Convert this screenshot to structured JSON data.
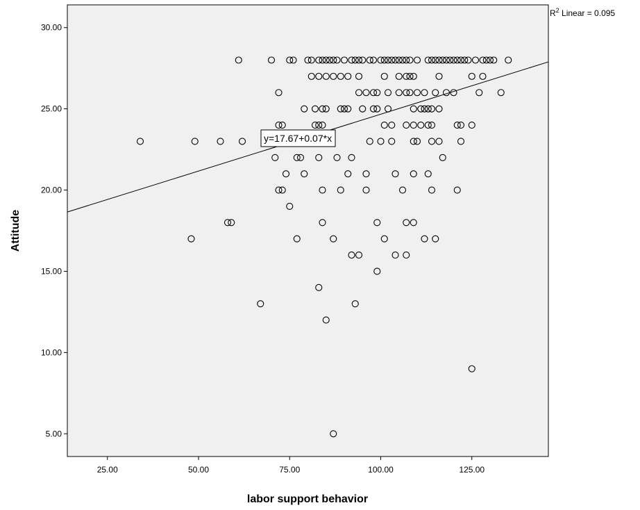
{
  "chart_data": {
    "type": "scatter",
    "title": "",
    "xlabel": "labor support behavior",
    "ylabel": "Attitude",
    "xlim": [
      14,
      146
    ],
    "ylim": [
      3.6,
      31.4
    ],
    "xticks": [
      25,
      50,
      75,
      100,
      125
    ],
    "xtick_labels": [
      "25.00",
      "50.00",
      "75.00",
      "100.00",
      "125.00"
    ],
    "yticks": [
      5,
      10,
      15,
      20,
      25,
      30
    ],
    "ytick_labels": [
      "5.00",
      "10.00",
      "15.00",
      "20.00",
      "25.00",
      "30.00"
    ],
    "grid": false,
    "fit_line": {
      "intercept": 17.67,
      "slope": 0.07,
      "equation_label": "y=17.67+0.07*x",
      "r2_prefix": "R",
      "r2_sup": "2",
      "r2_suffix": " Linear = 0.095"
    },
    "points": [
      [
        34,
        23
      ],
      [
        48,
        17
      ],
      [
        49,
        23
      ],
      [
        56,
        23
      ],
      [
        58,
        18
      ],
      [
        59,
        18
      ],
      [
        61,
        28
      ],
      [
        62,
        23
      ],
      [
        67,
        13
      ],
      [
        70,
        28
      ],
      [
        71,
        22
      ],
      [
        72,
        26
      ],
      [
        72,
        24
      ],
      [
        72,
        20
      ],
      [
        73,
        24
      ],
      [
        73,
        20
      ],
      [
        74,
        21
      ],
      [
        75,
        28
      ],
      [
        75,
        19
      ],
      [
        76,
        28
      ],
      [
        77,
        22
      ],
      [
        77,
        17
      ],
      [
        78,
        22
      ],
      [
        79,
        21
      ],
      [
        79,
        25
      ],
      [
        80,
        28
      ],
      [
        81,
        28
      ],
      [
        81,
        27
      ],
      [
        82,
        25
      ],
      [
        82,
        24
      ],
      [
        83,
        28
      ],
      [
        83,
        27
      ],
      [
        83,
        24
      ],
      [
        83,
        22
      ],
      [
        83,
        14
      ],
      [
        84,
        28
      ],
      [
        84,
        25
      ],
      [
        84,
        24
      ],
      [
        84,
        20
      ],
      [
        84,
        18
      ],
      [
        85,
        28
      ],
      [
        85,
        27
      ],
      [
        85,
        25
      ],
      [
        85,
        12
      ],
      [
        86,
        23
      ],
      [
        86,
        28
      ],
      [
        87,
        28
      ],
      [
        87,
        27
      ],
      [
        87,
        17
      ],
      [
        87,
        5
      ],
      [
        88,
        28
      ],
      [
        88,
        22
      ],
      [
        89,
        27
      ],
      [
        89,
        25
      ],
      [
        89,
        20
      ],
      [
        90,
        28
      ],
      [
        90,
        25
      ],
      [
        91,
        27
      ],
      [
        91,
        25
      ],
      [
        91,
        21
      ],
      [
        92,
        28
      ],
      [
        92,
        22
      ],
      [
        92,
        16
      ],
      [
        93,
        28
      ],
      [
        93,
        13
      ],
      [
        94,
        28
      ],
      [
        94,
        26
      ],
      [
        94,
        27
      ],
      [
        94,
        16
      ],
      [
        95,
        28
      ],
      [
        95,
        25
      ],
      [
        96,
        26
      ],
      [
        96,
        21
      ],
      [
        96,
        20
      ],
      [
        97,
        28
      ],
      [
        97,
        23
      ],
      [
        98,
        28
      ],
      [
        98,
        26
      ],
      [
        98,
        25
      ],
      [
        99,
        26
      ],
      [
        99,
        25
      ],
      [
        99,
        18
      ],
      [
        99,
        15
      ],
      [
        100,
        28
      ],
      [
        100,
        23
      ],
      [
        101,
        28
      ],
      [
        101,
        27
      ],
      [
        101,
        24
      ],
      [
        101,
        17
      ],
      [
        102,
        28
      ],
      [
        102,
        26
      ],
      [
        102,
        25
      ],
      [
        103,
        28
      ],
      [
        103,
        24
      ],
      [
        103,
        23
      ],
      [
        104,
        28
      ],
      [
        104,
        21
      ],
      [
        104,
        16
      ],
      [
        105,
        28
      ],
      [
        105,
        26
      ],
      [
        105,
        27
      ],
      [
        106,
        28
      ],
      [
        106,
        20
      ],
      [
        107,
        28
      ],
      [
        107,
        27
      ],
      [
        107,
        26
      ],
      [
        107,
        24
      ],
      [
        107,
        18
      ],
      [
        107,
        16
      ],
      [
        108,
        28
      ],
      [
        108,
        27
      ],
      [
        108,
        26
      ],
      [
        109,
        27
      ],
      [
        109,
        25
      ],
      [
        109,
        24
      ],
      [
        109,
        23
      ],
      [
        109,
        21
      ],
      [
        109,
        18
      ],
      [
        110,
        28
      ],
      [
        110,
        26
      ],
      [
        110,
        23
      ],
      [
        111,
        24
      ],
      [
        111,
        25
      ],
      [
        112,
        26
      ],
      [
        112,
        25
      ],
      [
        112,
        17
      ],
      [
        113,
        28
      ],
      [
        113,
        25
      ],
      [
        113,
        24
      ],
      [
        113,
        21
      ],
      [
        114,
        28
      ],
      [
        114,
        25
      ],
      [
        114,
        24
      ],
      [
        114,
        23
      ],
      [
        114,
        20
      ],
      [
        115,
        28
      ],
      [
        115,
        26
      ],
      [
        115,
        17
      ],
      [
        116,
        28
      ],
      [
        116,
        27
      ],
      [
        116,
        25
      ],
      [
        116,
        23
      ],
      [
        117,
        28
      ],
      [
        117,
        22
      ],
      [
        118,
        28
      ],
      [
        118,
        26
      ],
      [
        119,
        28
      ],
      [
        120,
        28
      ],
      [
        120,
        26
      ],
      [
        121,
        28
      ],
      [
        121,
        24
      ],
      [
        121,
        20
      ],
      [
        122,
        28
      ],
      [
        122,
        24
      ],
      [
        122,
        23
      ],
      [
        123,
        28
      ],
      [
        124,
        28
      ],
      [
        125,
        27
      ],
      [
        125,
        24
      ],
      [
        125,
        9
      ],
      [
        126,
        28
      ],
      [
        127,
        26
      ],
      [
        128,
        28
      ],
      [
        128,
        27
      ],
      [
        129,
        28
      ],
      [
        130,
        28
      ],
      [
        131,
        28
      ],
      [
        133,
        26
      ],
      [
        135,
        28
      ]
    ]
  }
}
